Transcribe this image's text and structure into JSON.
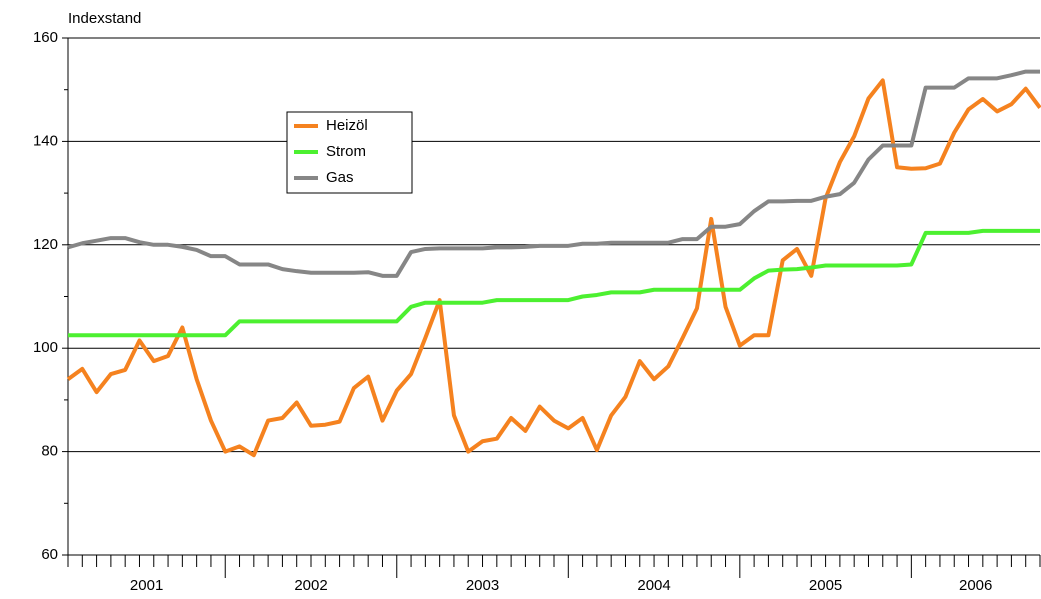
{
  "chart_data": {
    "type": "line",
    "y_axis_label": "Indexstand",
    "categories": [
      null,
      null,
      null,
      null,
      null,
      null,
      null,
      null,
      null,
      null,
      null,
      null,
      null,
      null,
      null,
      null,
      null,
      null,
      null,
      null,
      null,
      null,
      null,
      null,
      null,
      null,
      null,
      null,
      null,
      null,
      null,
      null,
      null,
      null,
      null,
      null,
      null,
      null,
      null,
      null,
      null,
      null,
      null,
      null,
      null,
      null,
      null,
      null,
      null,
      null,
      null,
      null,
      null,
      null,
      null,
      null,
      null,
      null,
      null,
      null,
      null,
      null,
      null,
      null,
      null,
      null,
      null,
      null,
      null
    ],
    "year_labels": [
      "2001",
      "2002",
      "2003",
      "2004",
      "2005",
      "2006"
    ],
    "series": [
      {
        "name": "Heizöl",
        "color": "#f5821f",
        "values": [
          94,
          96,
          91.5,
          95,
          95.8,
          101.5,
          97.5,
          98.5,
          104,
          94,
          86,
          80,
          81,
          79.3,
          86,
          86.5,
          89.5,
          85,
          85.2,
          85.8,
          92.3,
          94.5,
          86,
          91.8,
          95,
          102,
          109.3,
          87,
          80,
          82,
          82.5,
          86.5,
          84,
          88.7,
          86,
          84.5,
          86.5,
          80.3,
          87,
          90.6,
          97.5,
          94,
          96.5,
          102,
          107.7,
          125,
          108,
          100.5,
          102.5,
          102.5,
          117,
          119.2,
          114,
          129,
          136,
          141,
          148.3,
          151.8,
          135,
          134.7,
          134.8,
          135.7,
          141.7,
          146.2,
          148.2,
          145.8,
          147.2,
          150.2,
          146.5
        ]
      },
      {
        "name": "Strom",
        "color": "#4cf030",
        "values": [
          102.5,
          102.5,
          102.5,
          102.5,
          102.5,
          102.5,
          102.5,
          102.5,
          102.5,
          102.5,
          102.5,
          102.5,
          105.2,
          105.2,
          105.2,
          105.2,
          105.2,
          105.2,
          105.2,
          105.2,
          105.2,
          105.2,
          105.2,
          105.2,
          108,
          108.8,
          108.8,
          108.8,
          108.8,
          108.8,
          109.3,
          109.3,
          109.3,
          109.3,
          109.3,
          109.3,
          110,
          110.3,
          110.8,
          110.8,
          110.8,
          111.3,
          111.3,
          111.3,
          111.3,
          111.3,
          111.3,
          111.3,
          113.5,
          115,
          115.2,
          115.3,
          115.6,
          116,
          116,
          116,
          116,
          116,
          116,
          116.2,
          122.3,
          122.3,
          122.3,
          122.3,
          122.7,
          122.7,
          122.7,
          122.7,
          122.7
        ]
      },
      {
        "name": "Gas",
        "color": "#868686",
        "values": [
          119.5,
          120.3,
          120.8,
          121.3,
          121.3,
          120.5,
          120,
          120,
          119.6,
          119,
          117.8,
          117.8,
          116.2,
          116.2,
          116.2,
          115.3,
          114.9,
          114.6,
          114.6,
          114.6,
          114.6,
          114.7,
          114,
          114,
          118.6,
          119.2,
          119.3,
          119.3,
          119.3,
          119.3,
          119.5,
          119.5,
          119.6,
          119.8,
          119.8,
          119.8,
          120.2,
          120.2,
          120.4,
          120.4,
          120.4,
          120.4,
          120.4,
          121.1,
          121.1,
          123.5,
          123.5,
          124,
          126.5,
          128.4,
          128.4,
          128.5,
          128.5,
          129.3,
          129.8,
          132,
          136.5,
          139.2,
          139.2,
          139.2,
          150.4,
          150.4,
          150.4,
          152.2,
          152.2,
          152.2,
          152.8,
          153.5,
          153.5
        ]
      }
    ],
    "ylim": [
      60,
      160
    ],
    "yticks": [
      60,
      80,
      100,
      120,
      140,
      160
    ],
    "yticks_minor": [
      70,
      90,
      110,
      130,
      150
    ],
    "grid": true,
    "legend": "upper left"
  }
}
